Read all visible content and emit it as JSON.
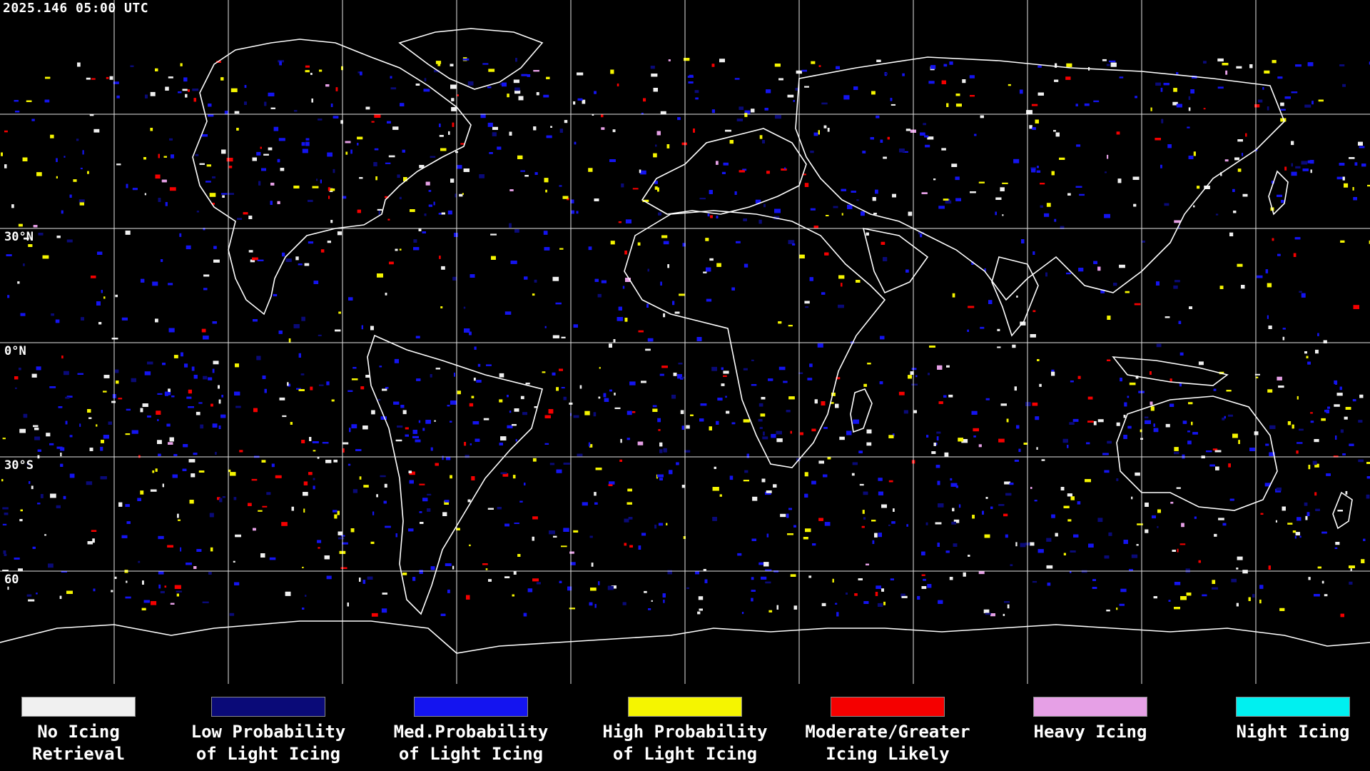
{
  "timestamp": "2025.146 05:00 UTC",
  "latitude_labels": [
    {
      "id": "30n",
      "text": "30°N"
    },
    {
      "id": "0n",
      "text": "0°N"
    },
    {
      "id": "30s",
      "text": "30°S"
    },
    {
      "id": "60s",
      "text": "60"
    }
  ],
  "legend": [
    {
      "id": "no-icing-retrieval",
      "label": "No Icing\nRetrieval",
      "color": "#f0f0f0"
    },
    {
      "id": "low-probability",
      "label": "Low Probability\nof Light Icing",
      "color": "#0a0a78"
    },
    {
      "id": "med-probability",
      "label": "Med.Probability\nof Light Icing",
      "color": "#1414f0"
    },
    {
      "id": "high-probability",
      "label": "High Probability\nof Light Icing",
      "color": "#f5f500"
    },
    {
      "id": "moderate-greater",
      "label": "Moderate/Greater\nIcing Likely",
      "color": "#f50000"
    },
    {
      "id": "heavy-icing",
      "label": "Heavy Icing",
      "color": "#e6a0e6"
    },
    {
      "id": "night-icing",
      "label": "Night Icing",
      "color": "#00f0f0"
    }
  ],
  "colors": {
    "background": "#000000",
    "grid": "#ffffff",
    "coastline": "#ffffff"
  }
}
